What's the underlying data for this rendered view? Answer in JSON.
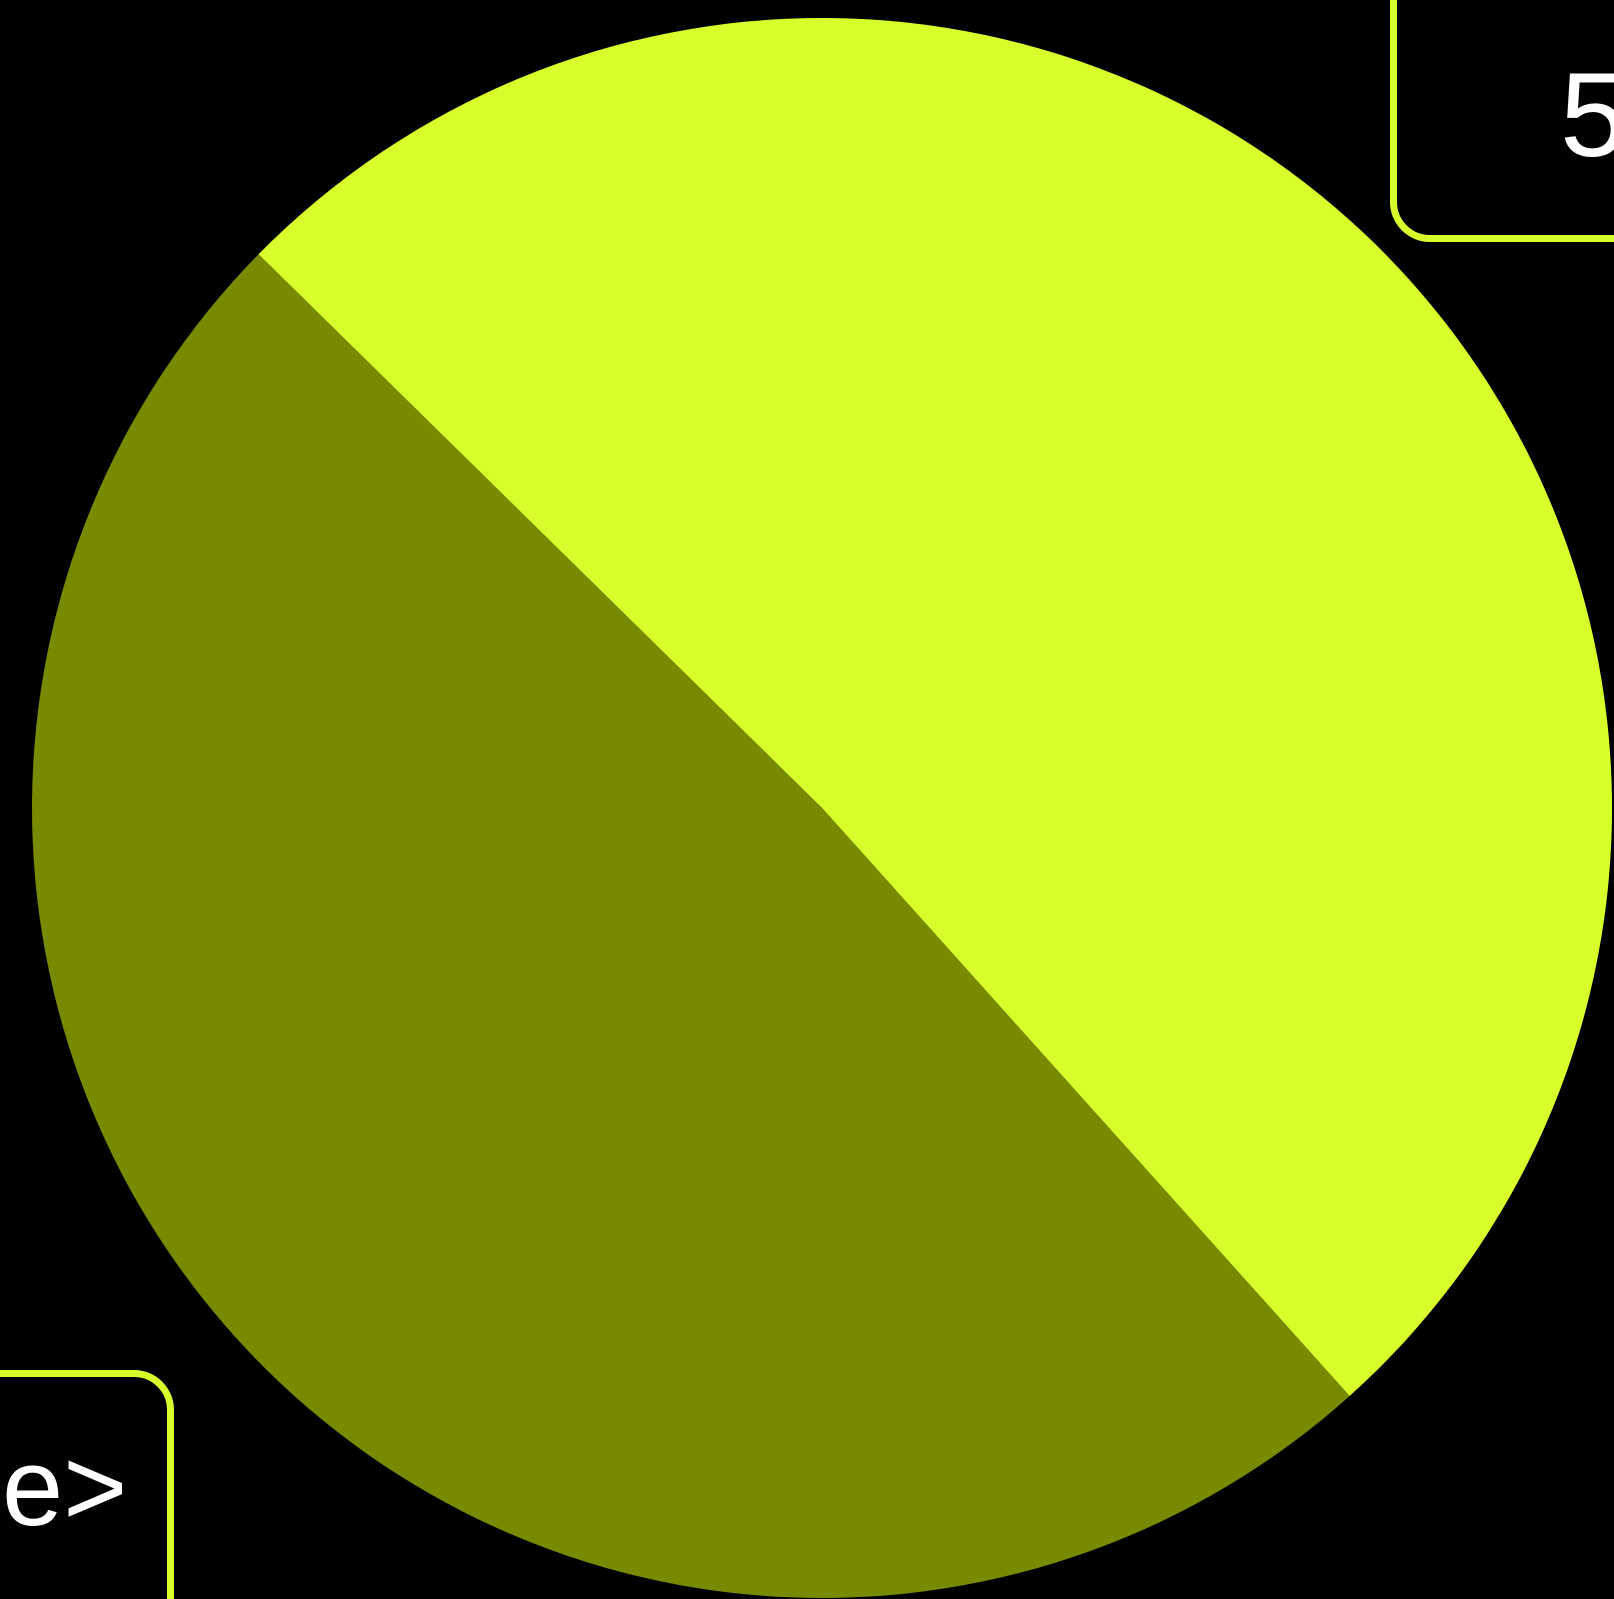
{
  "colors": {
    "background": "#000000",
    "slice_light": "#d7ff2b",
    "slice_dark": "#788a00",
    "frame_border": "#d7ff2b",
    "text": "#ffffff"
  },
  "chart_data": {
    "type": "pie",
    "slices": [
      {
        "fraction": 0.51,
        "color": "#d7ff2b"
      },
      {
        "fraction": 0.49,
        "color": "#788a00"
      }
    ]
  },
  "fragments": {
    "top_right": "5",
    "bottom_left": "e>"
  }
}
